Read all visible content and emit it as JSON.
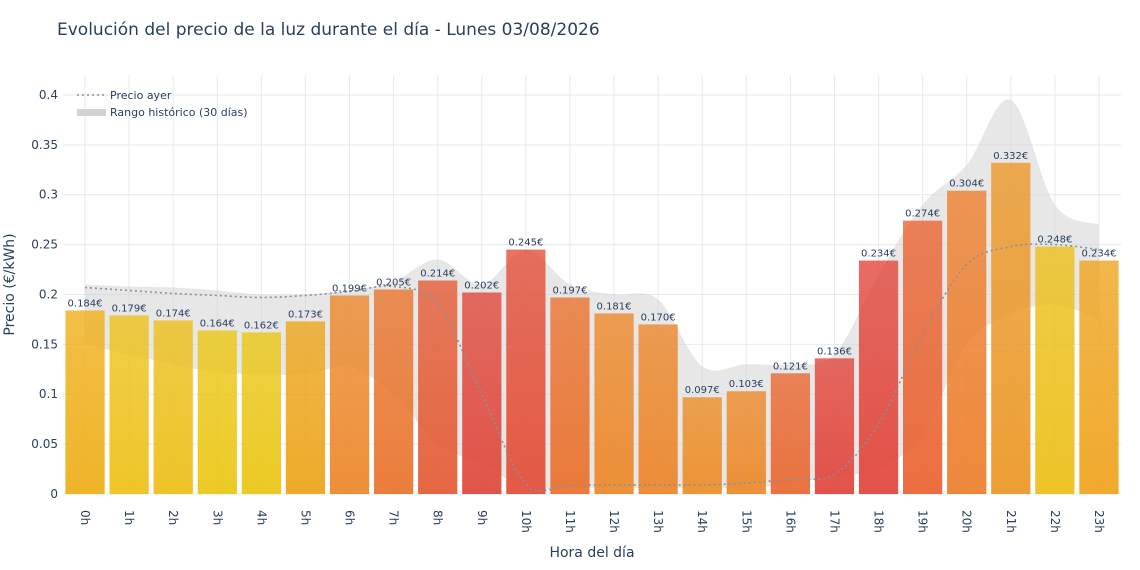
{
  "chart_data": {
    "type": "bar",
    "title": "Evolución del precio de la luz durante el día - Lunes 03/08/2026",
    "xlabel": "Hora del día",
    "ylabel": "Precio (€/kWh)",
    "ylim": [
      0,
      0.42
    ],
    "yticks": [
      "0",
      "0.05",
      "0.1",
      "0.15",
      "0.2",
      "0.25",
      "0.3",
      "0.35",
      "0.4"
    ],
    "grid": true,
    "legend_position": "top-left",
    "categories": [
      "0h",
      "1h",
      "2h",
      "3h",
      "4h",
      "5h",
      "6h",
      "7h",
      "8h",
      "9h",
      "10h",
      "11h",
      "12h",
      "13h",
      "14h",
      "15h",
      "16h",
      "17h",
      "18h",
      "19h",
      "20h",
      "21h",
      "22h",
      "23h"
    ],
    "values": [
      0.184,
      0.179,
      0.174,
      0.164,
      0.162,
      0.173,
      0.199,
      0.205,
      0.214,
      0.202,
      0.245,
      0.197,
      0.181,
      0.17,
      0.097,
      0.103,
      0.121,
      0.136,
      0.234,
      0.274,
      0.304,
      0.332,
      0.248,
      0.234
    ],
    "data_labels": [
      "0.184€",
      "0.179€",
      "0.174€",
      "0.164€",
      "0.162€",
      "0.173€",
      "0.199€",
      "0.205€",
      "0.214€",
      "0.202€",
      "0.245€",
      "0.197€",
      "0.181€",
      "0.170€",
      "0.097€",
      "0.103€",
      "0.121€",
      "0.136€",
      "0.234€",
      "0.274€",
      "0.304€",
      "0.332€",
      "0.248€",
      "0.234€"
    ],
    "series": [
      {
        "name": "Precio ayer",
        "type": "line",
        "style": "dotted",
        "color": "#8a8f98",
        "values": [
          0.207,
          0.204,
          0.201,
          0.199,
          0.197,
          0.199,
          0.203,
          0.208,
          0.19,
          0.1,
          0.01,
          0.009,
          0.009,
          0.009,
          0.009,
          0.011,
          0.015,
          0.02,
          0.07,
          0.16,
          0.23,
          0.248,
          0.25,
          0.245
        ]
      },
      {
        "name": "Rango histórico (30 días)",
        "type": "band",
        "color": "#d3d3d3",
        "upper": [
          0.21,
          0.208,
          0.207,
          0.204,
          0.2,
          0.2,
          0.204,
          0.213,
          0.235,
          0.21,
          0.245,
          0.21,
          0.2,
          0.195,
          0.128,
          0.13,
          0.13,
          0.14,
          0.22,
          0.29,
          0.33,
          0.395,
          0.29,
          0.27
        ],
        "lower": [
          0.15,
          0.14,
          0.13,
          0.122,
          0.12,
          0.12,
          0.127,
          0.1,
          0.05,
          0.03,
          0.006,
          0.006,
          0.006,
          0.006,
          0.006,
          0.006,
          0.01,
          0.018,
          0.025,
          0.06,
          0.15,
          0.18,
          0.19,
          0.175
        ]
      }
    ],
    "bar_colors": [
      "#efae17",
      "#edc119",
      "#ecbf18",
      "#ebc614",
      "#ebc514",
      "#eda419",
      "#ec872a",
      "#e9742c",
      "#e45b34",
      "#e0473b",
      "#e34e38",
      "#ea712d",
      "#ed882a",
      "#ec862a",
      "#ed8d27",
      "#ed892a",
      "#e96831",
      "#e2453b",
      "#e2453b",
      "#ea6331",
      "#ed7e2c",
      "#ec9726",
      "#ecbf18",
      "#efa31c"
    ]
  }
}
